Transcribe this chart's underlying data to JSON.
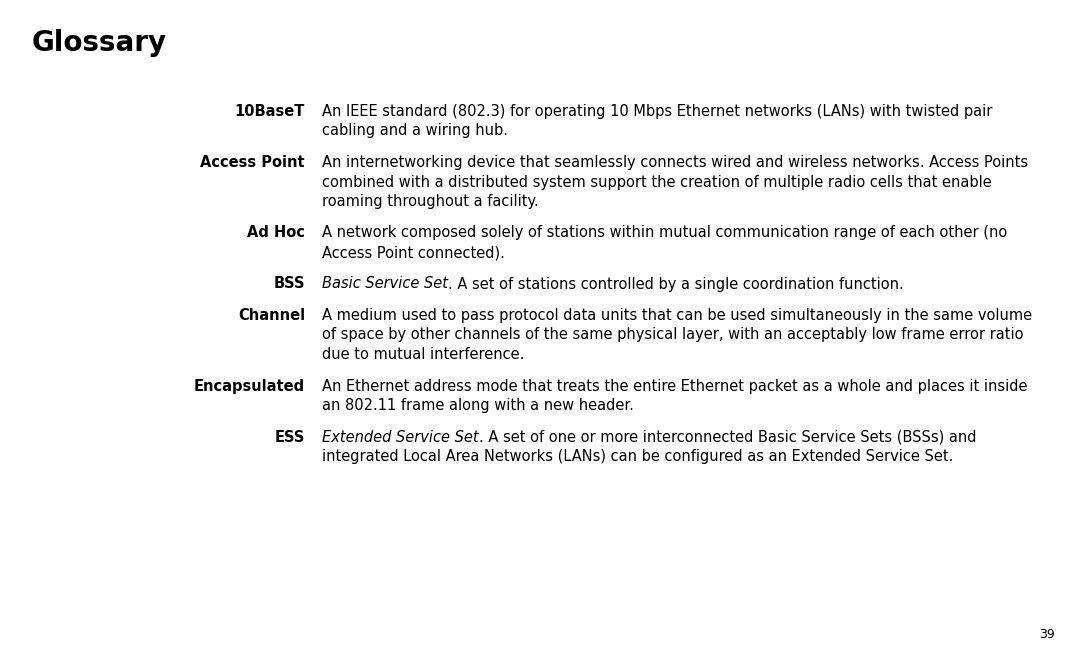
{
  "title": "Glossary",
  "title_fontsize": 20,
  "background_color": "#ffffff",
  "text_color": "#000000",
  "page_number": "39",
  "page_number_fontsize": 9,
  "font_size": 10.5,
  "entries": [
    {
      "term": "10BaseT",
      "definition_parts": [
        {
          "text": "An IEEE standard (802.3) for operating 10 Mbps Ethernet networks (LANs) with twisted pair\ncabling and a wiring hub.",
          "italic": false
        }
      ]
    },
    {
      "term": "Access Point",
      "definition_parts": [
        {
          "text": "An internetworking device that seamlessly connects wired and wireless networks. Access Points\ncombined with a distributed system support the creation of multiple radio cells that enable\nroaming throughout a facility.",
          "italic": false
        }
      ]
    },
    {
      "term": "Ad Hoc",
      "definition_parts": [
        {
          "text": "A network composed solely of stations within mutual communication range of each other (no\nAccess Point connected).",
          "italic": false
        }
      ]
    },
    {
      "term": "BSS",
      "definition_parts": [
        {
          "text": "Basic Service Set",
          "italic": true
        },
        {
          "text": ". A set of stations controlled by a single coordination function.",
          "italic": false
        }
      ]
    },
    {
      "term": "Channel",
      "definition_parts": [
        {
          "text": "A medium used to pass protocol data units that can be used simultaneously in the same volume\nof space by other channels of the same physical layer, with an acceptably low frame error ratio\ndue to mutual interference.",
          "italic": false
        }
      ]
    },
    {
      "term": "Encapsulated",
      "definition_parts": [
        {
          "text": "An Ethernet address mode that treats the entire Ethernet packet as a whole and places it inside\nan 802.11 frame along with a new header.",
          "italic": false
        }
      ]
    },
    {
      "term": "ESS",
      "definition_parts": [
        {
          "text": "Extended Service Set",
          "italic": true
        },
        {
          "text": ". A set of one or more interconnected Basic Service Sets (BSSs) and\nintegrated Local Area Networks (LANs) can be configured as an Extended Service Set.",
          "italic": false
        }
      ]
    }
  ]
}
